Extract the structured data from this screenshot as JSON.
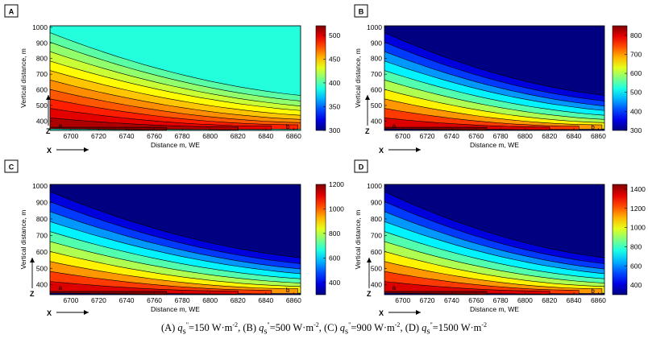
{
  "figure": {
    "common": {
      "xlabel": "Distance m, WE",
      "ylabel": "Vertical distance, m",
      "x_ticks": [
        "6700",
        "6720",
        "6740",
        "6760",
        "6780",
        "6800",
        "6820",
        "6840",
        "6860"
      ],
      "y_ticks": [
        "1000",
        "900",
        "800",
        "700",
        "600",
        "500",
        "400"
      ],
      "x_arrow_label": "X",
      "z_arrow_label": "Z",
      "point_a": "a",
      "point_b": "b"
    }
  },
  "caption": {
    "a_prefix": "(A) ",
    "a_q": "q",
    "a_sub": "s",
    "a_sup_q": "\"",
    "a_val": "=150 W·m",
    "a_exp": "-2",
    "a_sep": ", ",
    "b_prefix": "(B) ",
    "b_q": "q",
    "b_sub": "s",
    "b_sup_q": "\"",
    "b_val": "=500 W·m",
    "b_exp": "-2",
    "b_sep": ", ",
    "c_prefix": "(C) ",
    "c_q": "q",
    "c_sub": "s",
    "c_sup_q": "\"",
    "c_val": "=900 W·m",
    "c_exp": "-2",
    "c_sep": ", ",
    "d_prefix": "(D) ",
    "d_q": "q",
    "d_sub": "s",
    "d_sup_q": "\"",
    "d_val": "=1500 W·m",
    "d_exp": "-2"
  },
  "chart_data": [
    {
      "type": "heatmap",
      "panel_label": "A",
      "xlabel": "Distance m, WE",
      "ylabel": "Vertical distance, m",
      "xlim": [
        6685,
        6865
      ],
      "ylim": [
        340,
        1010
      ],
      "x_ticks": [
        6700,
        6720,
        6740,
        6760,
        6780,
        6800,
        6820,
        6840,
        6860
      ],
      "y_ticks": [
        400,
        500,
        600,
        700,
        800,
        900,
        1000
      ],
      "colorbar": {
        "min": 300,
        "max": 520,
        "ticks": [
          300,
          350,
          400,
          450,
          500
        ]
      },
      "source_point": {
        "label": "a",
        "x": 6690,
        "z": 370
      },
      "end_point": {
        "label": "b",
        "x": 6858,
        "z": 365
      },
      "field": {
        "ambient": 390,
        "peak": 522
      }
    },
    {
      "type": "heatmap",
      "panel_label": "B",
      "xlabel": "Distance m, WE",
      "ylabel": "Vertical distance, m",
      "xlim": [
        6685,
        6865
      ],
      "ylim": [
        340,
        1010
      ],
      "x_ticks": [
        6700,
        6720,
        6740,
        6760,
        6780,
        6800,
        6820,
        6840,
        6860
      ],
      "y_ticks": [
        400,
        500,
        600,
        700,
        800,
        900,
        1000
      ],
      "colorbar": {
        "min": 300,
        "max": 850,
        "ticks": [
          300,
          400,
          500,
          600,
          700,
          800
        ]
      },
      "source_point": {
        "label": "a",
        "x": 6690,
        "z": 372
      },
      "end_point": {
        "label": "b",
        "x": 6858,
        "z": 362
      },
      "field": {
        "ambient": 300,
        "peak": 850
      }
    },
    {
      "type": "heatmap",
      "panel_label": "C",
      "xlabel": "Distance m, WE",
      "ylabel": "Vertical distance, m",
      "xlim": [
        6685,
        6865
      ],
      "ylim": [
        340,
        1010
      ],
      "x_ticks": [
        6700,
        6720,
        6740,
        6760,
        6780,
        6800,
        6820,
        6840,
        6860
      ],
      "y_ticks": [
        400,
        500,
        600,
        700,
        800,
        900,
        1000
      ],
      "colorbar": {
        "min": 300,
        "max": 1200,
        "ticks": [
          400,
          600,
          800,
          1000,
          1200
        ]
      },
      "source_point": {
        "label": "a",
        "x": 6690,
        "z": 385
      },
      "end_point": {
        "label": "b",
        "x": 6858,
        "z": 370
      },
      "field": {
        "ambient": 300,
        "peak": 1200
      }
    },
    {
      "type": "heatmap",
      "panel_label": "D",
      "xlabel": "Distance m, WE",
      "ylabel": "Vertical distance, m",
      "xlim": [
        6685,
        6865
      ],
      "ylim": [
        340,
        1010
      ],
      "x_ticks": [
        6700,
        6720,
        6740,
        6760,
        6780,
        6800,
        6820,
        6840,
        6860
      ],
      "y_ticks": [
        400,
        500,
        600,
        700,
        800,
        900,
        1000
      ],
      "colorbar": {
        "min": 300,
        "max": 1450,
        "ticks": [
          400,
          600,
          800,
          1000,
          1200,
          1400
        ]
      },
      "source_point": {
        "label": "a",
        "x": 6690,
        "z": 385
      },
      "end_point": {
        "label": "b",
        "x": 6858,
        "z": 365
      },
      "field": {
        "ambient": 300,
        "peak": 1450
      }
    }
  ]
}
